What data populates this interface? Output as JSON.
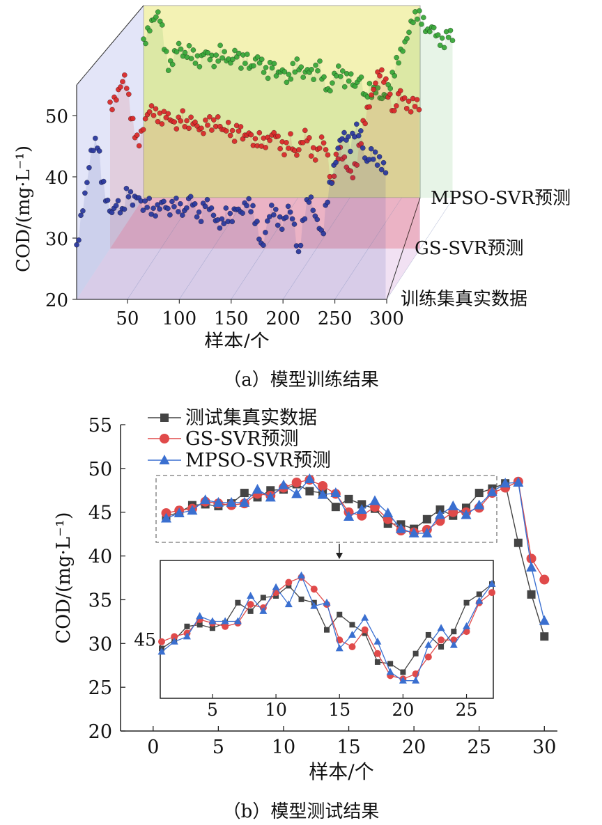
{
  "captions": {
    "a": "（a）模型训练结果",
    "b": "（b）模型测试结果"
  },
  "chart_data": [
    {
      "type": "line",
      "title": "",
      "xlabel": "样本/个",
      "ylabel": "COD/(mg·L⁻¹)",
      "xlim": [
        1,
        300
      ],
      "ylim": [
        20,
        55
      ],
      "x_ticks": [
        50,
        100,
        150,
        200,
        250,
        300
      ],
      "y_ticks": [
        20,
        30,
        40,
        50
      ],
      "series": [
        {
          "name": "训练集真实数据",
          "color": "#2c3a9e",
          "keypoints": [
            [
              1,
              28
            ],
            [
              5,
              33
            ],
            [
              10,
              38
            ],
            [
              15,
              44
            ],
            [
              20,
              46
            ],
            [
              22,
              45
            ],
            [
              25,
              40
            ],
            [
              30,
              36
            ],
            [
              35,
              34
            ],
            [
              40,
              36
            ],
            [
              45,
              34
            ],
            [
              50,
              38
            ],
            [
              55,
              36
            ],
            [
              60,
              37
            ],
            [
              65,
              35
            ],
            [
              70,
              36
            ],
            [
              75,
              34
            ],
            [
              80,
              35
            ],
            [
              85,
              36
            ],
            [
              90,
              34
            ],
            [
              95,
              36
            ],
            [
              100,
              35
            ],
            [
              105,
              34
            ],
            [
              110,
              37
            ],
            [
              115,
              35
            ],
            [
              120,
              33
            ],
            [
              125,
              36
            ],
            [
              130,
              35
            ],
            [
              135,
              33
            ],
            [
              140,
              32
            ],
            [
              145,
              34
            ],
            [
              150,
              33
            ],
            [
              155,
              35
            ],
            [
              160,
              34
            ],
            [
              165,
              36
            ],
            [
              170,
              35
            ],
            [
              175,
              32
            ],
            [
              180,
              28
            ],
            [
              183,
              31
            ],
            [
              187,
              34
            ],
            [
              190,
              35
            ],
            [
              195,
              33
            ],
            [
              200,
              32
            ],
            [
              205,
              35
            ],
            [
              210,
              33
            ],
            [
              215,
              27
            ],
            [
              218,
              31
            ],
            [
              222,
              35
            ],
            [
              226,
              37
            ],
            [
              230,
              34
            ],
            [
              235,
              32
            ],
            [
              238,
              30
            ],
            [
              242,
              36
            ],
            [
              246,
              39
            ],
            [
              250,
              42
            ],
            [
              255,
              46
            ],
            [
              260,
              47
            ],
            [
              265,
              45
            ],
            [
              270,
              48
            ],
            [
              275,
              47
            ],
            [
              280,
              42
            ],
            [
              285,
              44
            ],
            [
              290,
              43
            ],
            [
              295,
              42
            ],
            [
              300,
              41
            ]
          ]
        },
        {
          "name": "GS-SVR预测",
          "color": "#d92b2b",
          "keypoints": [
            [
              1,
              43
            ],
            [
              5,
              44
            ],
            [
              10,
              46
            ],
            [
              12,
              47
            ],
            [
              15,
              48
            ],
            [
              18,
              46
            ],
            [
              20,
              43
            ],
            [
              22,
              41
            ],
            [
              25,
              39
            ],
            [
              28,
              37
            ],
            [
              30,
              38
            ],
            [
              35,
              41
            ],
            [
              40,
              43
            ],
            [
              45,
              42
            ],
            [
              50,
              41
            ],
            [
              55,
              42
            ],
            [
              60,
              41
            ],
            [
              65,
              40
            ],
            [
              70,
              42
            ],
            [
              75,
              40
            ],
            [
              80,
              41
            ],
            [
              85,
              40
            ],
            [
              90,
              39
            ],
            [
              95,
              41
            ],
            [
              100,
              40
            ],
            [
              105,
              41
            ],
            [
              110,
              39
            ],
            [
              115,
              40
            ],
            [
              120,
              38
            ],
            [
              125,
              40
            ],
            [
              130,
              38
            ],
            [
              135,
              39
            ],
            [
              140,
              37
            ],
            [
              145,
              38
            ],
            [
              150,
              37
            ],
            [
              155,
              38
            ],
            [
              160,
              39
            ],
            [
              165,
              37
            ],
            [
              170,
              36
            ],
            [
              175,
              38
            ],
            [
              180,
              35
            ],
            [
              185,
              37
            ],
            [
              190,
              39
            ],
            [
              195,
              36
            ],
            [
              200,
              35
            ],
            [
              205,
              38
            ],
            [
              210,
              36
            ],
            [
              215,
              30
            ],
            [
              218,
              34
            ],
            [
              222,
              36
            ],
            [
              226,
              35
            ],
            [
              230,
              33
            ],
            [
              235,
              32
            ],
            [
              240,
              35
            ],
            [
              245,
              40
            ],
            [
              250,
              43
            ],
            [
              255,
              46
            ],
            [
              260,
              49
            ],
            [
              265,
              48
            ],
            [
              270,
              45
            ],
            [
              275,
              42
            ],
            [
              280,
              46
            ],
            [
              285,
              44
            ],
            [
              290,
              43
            ],
            [
              295,
              44
            ],
            [
              300,
              43
            ]
          ]
        },
        {
          "name": "MPSO-SVR预测",
          "color": "#3aa83a",
          "keypoints": [
            [
              1,
              45
            ],
            [
              5,
              47
            ],
            [
              10,
              49
            ],
            [
              15,
              50
            ],
            [
              18,
              49
            ],
            [
              20,
              46
            ],
            [
              23,
              43
            ],
            [
              26,
              41
            ],
            [
              30,
              43
            ],
            [
              35,
              45
            ],
            [
              40,
              43
            ],
            [
              45,
              44
            ],
            [
              50,
              43
            ],
            [
              55,
              42
            ],
            [
              60,
              44
            ],
            [
              65,
              43
            ],
            [
              70,
              42
            ],
            [
              75,
              44
            ],
            [
              80,
              43
            ],
            [
              85,
              42
            ],
            [
              90,
              44
            ],
            [
              95,
              42
            ],
            [
              100,
              43
            ],
            [
              105,
              41
            ],
            [
              110,
              43
            ],
            [
              115,
              42
            ],
            [
              120,
              40
            ],
            [
              125,
              42
            ],
            [
              130,
              40
            ],
            [
              135,
              41
            ],
            [
              140,
              39
            ],
            [
              145,
              41
            ],
            [
              150,
              42
            ],
            [
              155,
              40
            ],
            [
              160,
              41
            ],
            [
              165,
              40
            ],
            [
              170,
              42
            ],
            [
              175,
              39
            ],
            [
              180,
              37
            ],
            [
              185,
              40
            ],
            [
              190,
              41
            ],
            [
              195,
              39
            ],
            [
              200,
              40
            ],
            [
              205,
              38
            ],
            [
              210,
              40
            ],
            [
              215,
              36
            ],
            [
              218,
              38
            ],
            [
              222,
              37
            ],
            [
              226,
              38
            ],
            [
              230,
              36
            ],
            [
              235,
              37
            ],
            [
              240,
              39
            ],
            [
              245,
              42
            ],
            [
              250,
              44
            ],
            [
              255,
              46
            ],
            [
              260,
              49
            ],
            [
              265,
              50
            ],
            [
              270,
              49
            ],
            [
              275,
              47
            ],
            [
              280,
              48
            ],
            [
              285,
              46
            ],
            [
              290,
              45
            ],
            [
              295,
              47
            ],
            [
              300,
              46
            ]
          ]
        }
      ],
      "colors": {
        "floor": "#c8ccf2",
        "wall_purple": "#d8a8dc",
        "wall_pink": "#f8c8cc",
        "wall_yellow": "#f2f0a8"
      }
    },
    {
      "type": "line",
      "title": "",
      "xlabel": "样本/个",
      "ylabel": "COD/(mg·L⁻¹)",
      "xlim": [
        -2.5,
        31
      ],
      "ylim": [
        20,
        55
      ],
      "x_ticks": [
        0,
        5,
        10,
        15,
        20,
        25,
        30
      ],
      "y_ticks": [
        20,
        25,
        30,
        35,
        40,
        45,
        50,
        55
      ],
      "legend_position": "top-left",
      "x": [
        1,
        2,
        3,
        4,
        5,
        6,
        7,
        8,
        9,
        10,
        11,
        12,
        13,
        14,
        15,
        16,
        17,
        18,
        19,
        20,
        21,
        22,
        23,
        24,
        25,
        26,
        27,
        28,
        29,
        30
      ],
      "series": [
        {
          "name": "测试集真实数据",
          "marker": "square",
          "color": "#444444",
          "values": [
            44.5,
            45.0,
            45.8,
            45.9,
            45.7,
            46.0,
            47.2,
            46.7,
            47.5,
            47.6,
            48.2,
            47.4,
            47.2,
            45.6,
            46.5,
            45.9,
            45.4,
            43.7,
            43.6,
            43.1,
            44.2,
            45.3,
            44.6,
            45.5,
            47.2,
            47.7,
            48.3,
            41.5,
            35.6,
            30.8
          ]
        },
        {
          "name": "GS-SVR预测",
          "marker": "circle",
          "color": "#e04a4a",
          "values": [
            44.9,
            45.2,
            45.4,
            46.2,
            46.0,
            45.8,
            46.0,
            47.1,
            46.9,
            47.8,
            48.4,
            48.7,
            48.0,
            47.1,
            45.0,
            44.6,
            45.6,
            44.2,
            42.9,
            42.7,
            43.0,
            44.0,
            45.0,
            45.0,
            45.5,
            47.2,
            47.8,
            48.5,
            39.7,
            37.3
          ]
        },
        {
          "name": "MPSO-SVR预测",
          "marker": "triangle",
          "color": "#3a6fd0",
          "values": [
            44.3,
            44.9,
            45.2,
            46.4,
            46.1,
            46.1,
            46.1,
            47.6,
            46.7,
            48.1,
            47.1,
            48.8,
            47.0,
            47.2,
            44.5,
            45.3,
            46.3,
            44.9,
            43.1,
            42.6,
            42.6,
            44.7,
            45.7,
            44.7,
            45.8,
            47.3,
            48.3,
            48.4,
            38.7,
            32.6
          ]
        }
      ],
      "inset": {
        "ylabel_tick": "45",
        "x_ticks": [
          5,
          10,
          15,
          20,
          25
        ],
        "range": [
          1,
          27
        ]
      }
    }
  ]
}
